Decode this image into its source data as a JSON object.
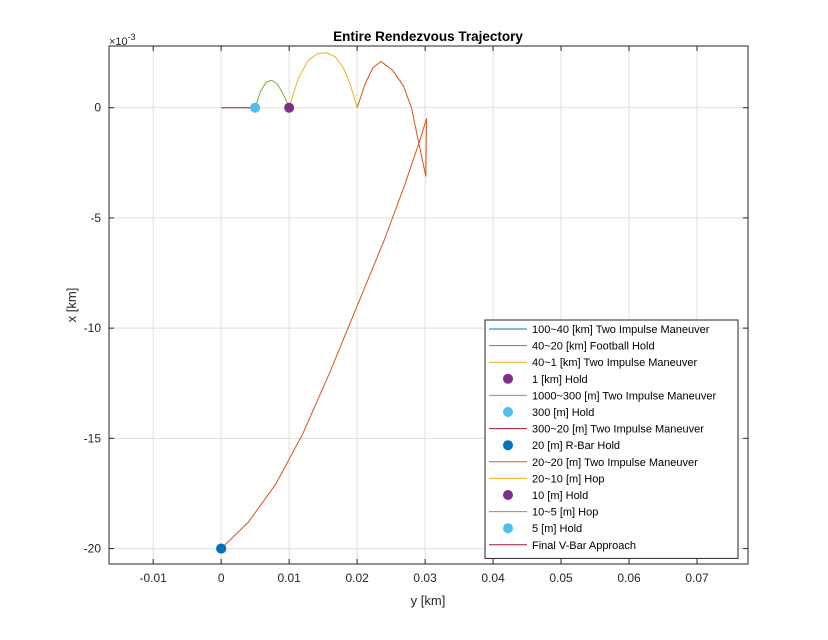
{
  "chart_data": {
    "type": "line",
    "title": "Entire Rendezvous Trajectory",
    "xlabel": "y [km]",
    "ylabel": "x [km]",
    "y_exponent_label": "×10",
    "y_exponent_power": "-3",
    "xlim": [
      -0.0165,
      0.0775
    ],
    "ylim": [
      -20.7,
      2.8
    ],
    "y_scale_factor": 0.001,
    "xticks": [
      -0.01,
      0,
      0.01,
      0.02,
      0.03,
      0.04,
      0.05,
      0.06,
      0.07
    ],
    "xtick_labels": [
      "-0.01",
      "0",
      "0.01",
      "0.02",
      "0.03",
      "0.04",
      "0.05",
      "0.06",
      "0.07"
    ],
    "yticks": [
      0,
      -5,
      -10,
      -15,
      -20
    ],
    "ytick_labels": [
      "0",
      "-5",
      "-10",
      "-15",
      "-20"
    ],
    "grid": true,
    "legend_position": "bottom-right",
    "series": [
      {
        "name": "100~40 [km] Two Impulse Maneuver",
        "kind": "line",
        "color": "#0072BD",
        "x": [
          0
        ],
        "y": [
          -20
        ]
      },
      {
        "name": "40~20 [km] Football Hold",
        "kind": "line",
        "color": "#D95319",
        "x": [
          0
        ],
        "y": [
          -20
        ]
      },
      {
        "name": "40~1 [km] Two Impulse Maneuver",
        "kind": "line",
        "color": "#EDB120",
        "x": [
          0
        ],
        "y": [
          -20
        ]
      },
      {
        "name": "1 [km] Hold",
        "kind": "marker",
        "color": "#7E2F8E",
        "x": [
          0
        ],
        "y": [
          -20
        ]
      },
      {
        "name": "1000~300 [m] Two Impulse Maneuver",
        "kind": "line",
        "color": "#77AC30",
        "x": [
          0
        ],
        "y": [
          -20
        ]
      },
      {
        "name": "300 [m] Hold",
        "kind": "marker",
        "color": "#4DBEEE",
        "x": [
          0
        ],
        "y": [
          -20
        ]
      },
      {
        "name": "300~20 [m] Two Impulse Maneuver",
        "kind": "line",
        "color": "#A2142F",
        "x": [
          0
        ],
        "y": [
          -20
        ]
      },
      {
        "name": "20 [m] R-Bar Hold",
        "kind": "marker",
        "color": "#0072BD",
        "x": [
          0
        ],
        "y": [
          -20
        ]
      },
      {
        "name": "20~20 [m] Two Impulse Maneuver",
        "kind": "line",
        "color": "#D95319",
        "x": [
          0,
          0.004,
          0.008,
          0.012,
          0.016,
          0.02,
          0.024,
          0.027,
          0.0292,
          0.0302,
          0.0301,
          0.029,
          0.028,
          0.0268,
          0.0252,
          0.0235,
          0.0223,
          0.0212,
          0.02
        ],
        "y": [
          -20,
          -18.8,
          -17.1,
          -14.8,
          -12.0,
          -9.0,
          -6.0,
          -3.5,
          -1.5,
          -0.5,
          -3.1,
          -1.5,
          0.0,
          1.0,
          1.7,
          2.1,
          1.8,
          1.1,
          0
        ]
      },
      {
        "name": "20~10 [m] Hop",
        "kind": "line",
        "color": "#EDB120",
        "x": [
          0.01,
          0.0113,
          0.0128,
          0.0142,
          0.0155,
          0.0168,
          0.018,
          0.019,
          0.02
        ],
        "y": [
          0,
          1.3,
          2.15,
          2.45,
          2.5,
          2.3,
          1.8,
          1.05,
          0
        ]
      },
      {
        "name": "10 [m] Hold",
        "kind": "marker",
        "color": "#7E2F8E",
        "x": [
          0.01
        ],
        "y": [
          0
        ]
      },
      {
        "name": "10~5 [m] Hop",
        "kind": "line",
        "color": "#77AC30",
        "x": [
          0.005,
          0.0058,
          0.0066,
          0.0074,
          0.0082,
          0.009,
          0.0096,
          0.01
        ],
        "y": [
          0,
          0.75,
          1.15,
          1.25,
          1.1,
          0.7,
          0.3,
          0
        ]
      },
      {
        "name": "5 [m] Hold",
        "kind": "marker",
        "color": "#4DBEEE",
        "x": [
          0.005
        ],
        "y": [
          0
        ]
      },
      {
        "name": "Final V-Bar Approach",
        "kind": "line",
        "color": "#A2142F",
        "x": [
          0,
          0.005
        ],
        "y": [
          0,
          0
        ]
      }
    ]
  }
}
